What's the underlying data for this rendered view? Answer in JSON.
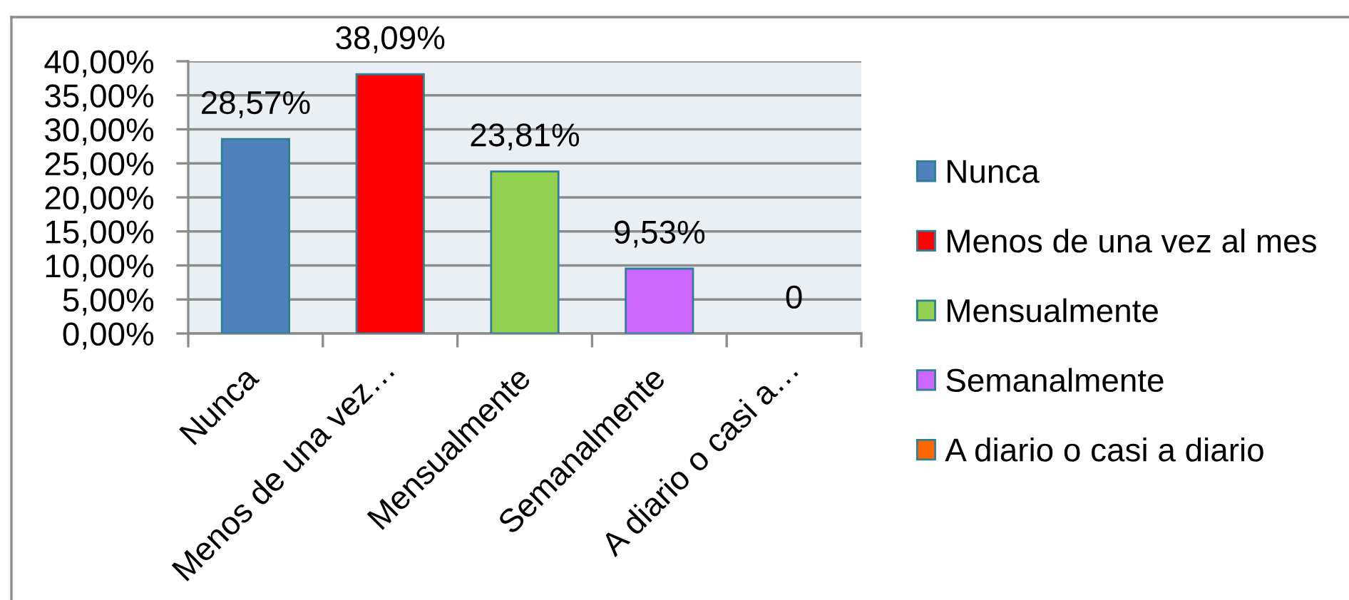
{
  "chart_data": {
    "type": "bar",
    "categories": [
      "Nunca",
      "Menos de una vez…",
      "Mensualmente",
      "Semanalmente",
      "A diario o casi a…"
    ],
    "series": [
      {
        "name": "Nunca",
        "color": "#4f81bd",
        "values": [
          28.57,
          null,
          null,
          null,
          null
        ],
        "value_labels": [
          "28,57%",
          null,
          null,
          null,
          null
        ]
      },
      {
        "name": "Menos de una vez al mes",
        "color": "#ff0000",
        "values": [
          null,
          38.09,
          null,
          null,
          null
        ],
        "value_labels": [
          null,
          "38,09%",
          null,
          null,
          null
        ]
      },
      {
        "name": "Mensualmente",
        "color": "#92d050",
        "values": [
          null,
          null,
          23.81,
          null,
          null
        ],
        "value_labels": [
          null,
          null,
          "23,81%",
          null,
          null
        ]
      },
      {
        "name": "Semanalmente",
        "color": "#cc66ff",
        "values": [
          null,
          null,
          null,
          9.53,
          null
        ],
        "value_labels": [
          null,
          null,
          null,
          "9,53%",
          null
        ]
      },
      {
        "name": "A diario o casi a diario",
        "color": "#ff6600",
        "values": [
          null,
          null,
          null,
          null,
          0
        ],
        "value_labels": [
          null,
          null,
          null,
          null,
          "0"
        ]
      }
    ],
    "ylim": [
      0,
      40
    ],
    "yticks": [
      {
        "value": 0,
        "label": "0,00%"
      },
      {
        "value": 5,
        "label": "5,00%"
      },
      {
        "value": 10,
        "label": "10,00%"
      },
      {
        "value": 15,
        "label": "15,00%"
      },
      {
        "value": 20,
        "label": "20,00%"
      },
      {
        "value": 25,
        "label": "25,00%"
      },
      {
        "value": 30,
        "label": "30,00%"
      },
      {
        "value": 35,
        "label": "35,00%"
      },
      {
        "value": 40,
        "label": "40,00%"
      }
    ],
    "grid": "y",
    "legend": "right"
  }
}
